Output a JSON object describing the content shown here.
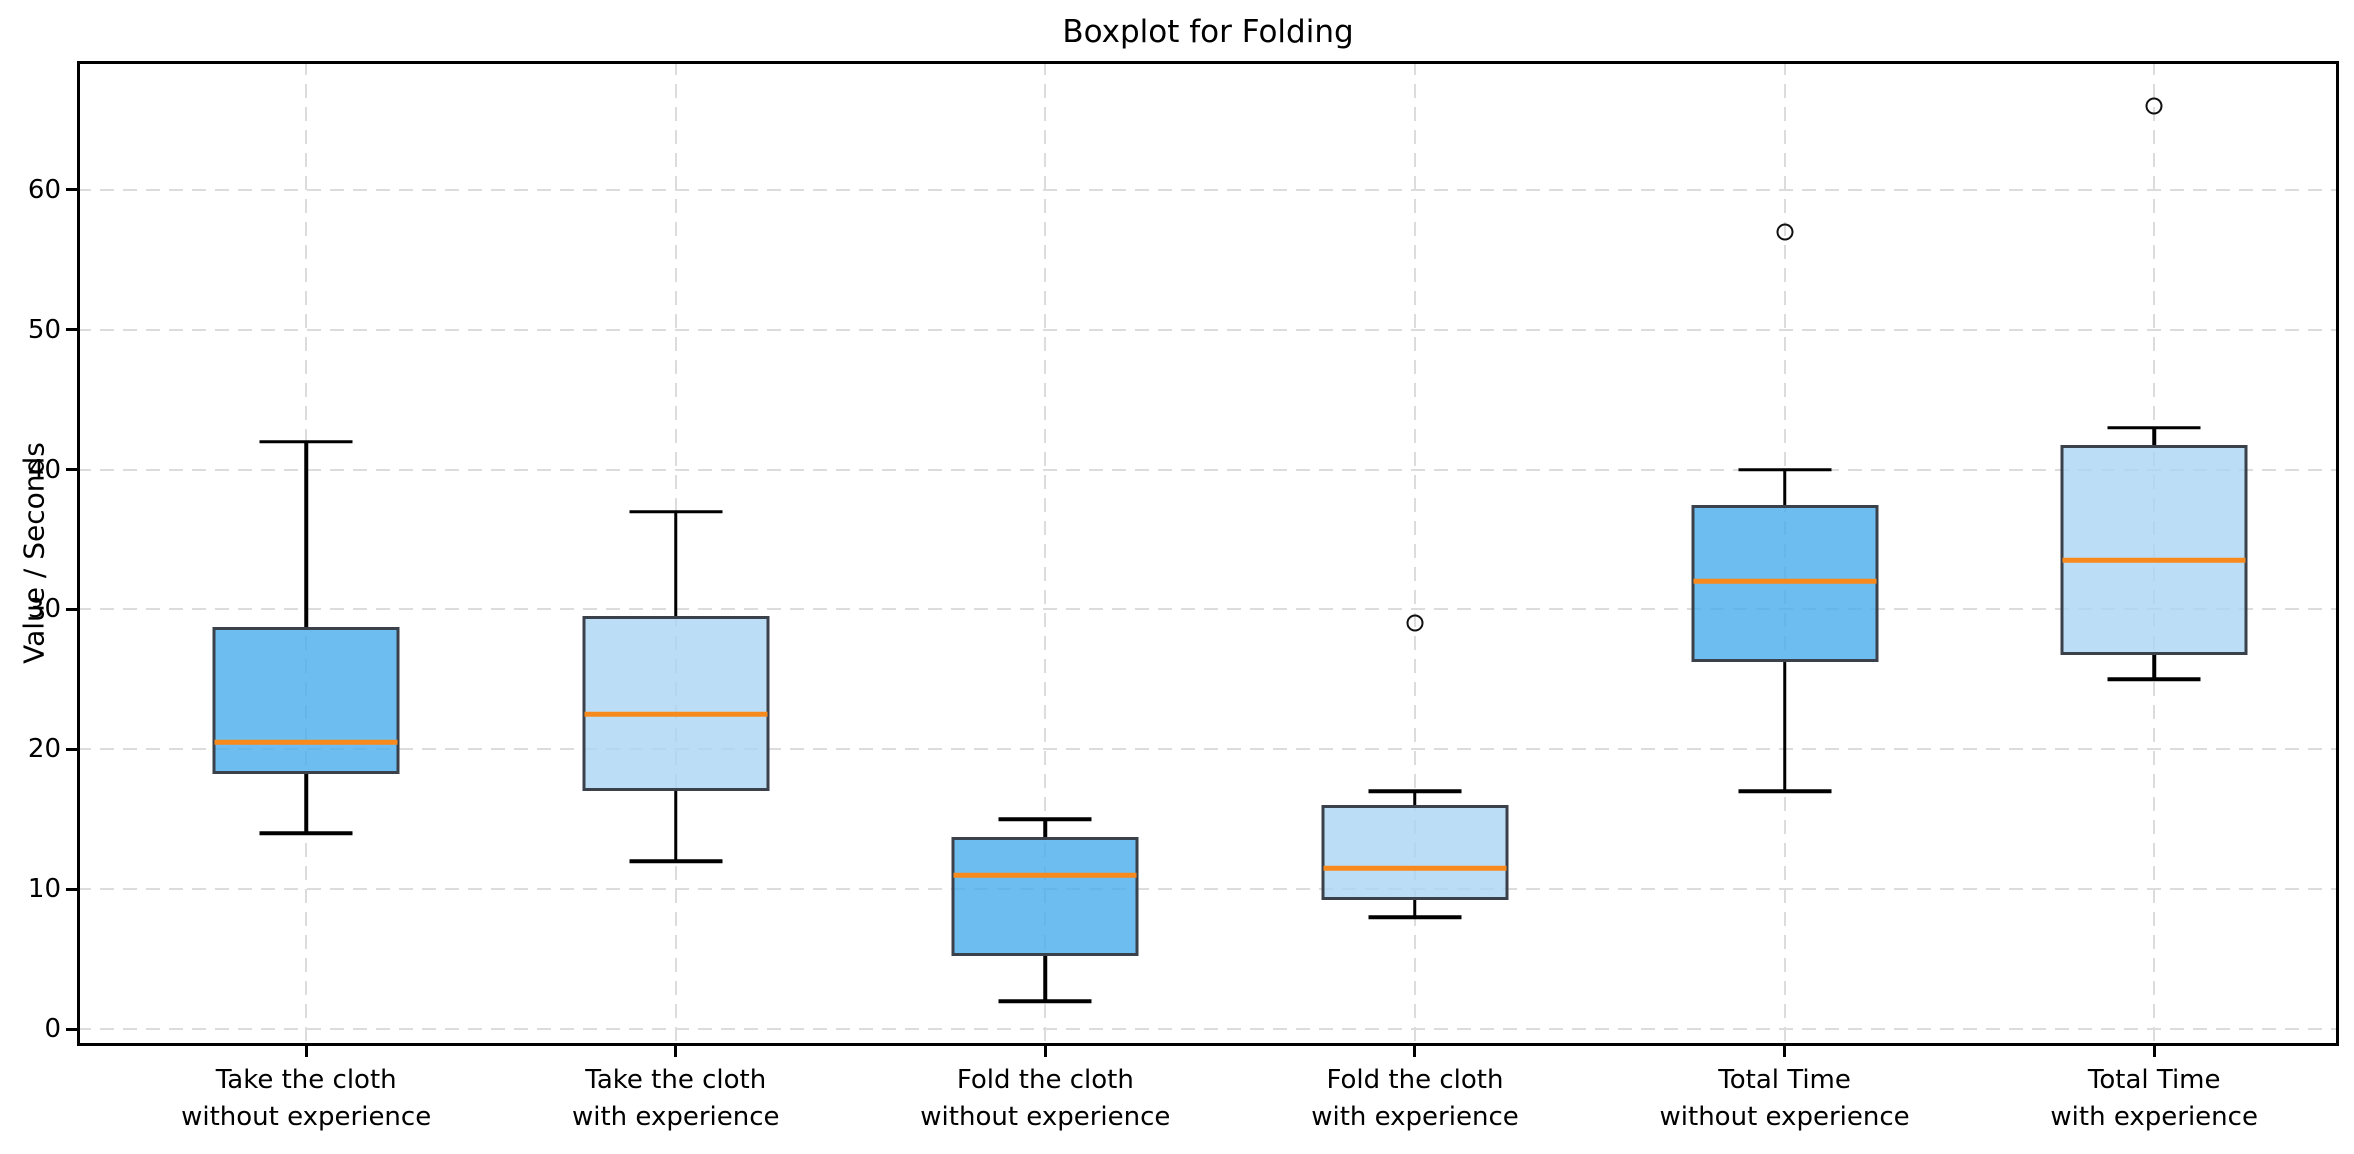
{
  "title": "Boxplot for Folding",
  "ylabel": "Value / Seconds",
  "chart_data": {
    "type": "boxplot",
    "title": "Boxplot for Folding",
    "xlabel": "",
    "ylabel": "Value / Seconds",
    "grid": "dashed, light gray, horizontal and vertical",
    "legend": "none",
    "yticks": [
      0,
      10,
      20,
      30,
      40,
      50,
      60
    ],
    "ylim": [
      -1.2,
      69.2
    ],
    "xlim": [
      0.38,
      6.5
    ],
    "categories": [
      "Take the cloth\nwithout experience",
      "Take the cloth\nwith experience",
      "Fold the cloth\nwithout experience",
      "Fold the cloth\nwith experience",
      "Total Time\nwithout experience",
      "Total Time\nwith experience"
    ],
    "series": [
      {
        "label": "Take the cloth without experience",
        "whislo": 14,
        "q1": 18.25,
        "med": 20.5,
        "q3": 28.75,
        "whishi": 42,
        "fliers": [],
        "variant": "dark"
      },
      {
        "label": "Take the cloth with experience",
        "whislo": 12,
        "q1": 17,
        "med": 22.5,
        "q3": 29.5,
        "whishi": 37,
        "fliers": [],
        "variant": "light"
      },
      {
        "label": "Fold the cloth without experience",
        "whislo": 2,
        "q1": 5.25,
        "med": 11,
        "q3": 13.75,
        "whishi": 15,
        "fliers": [],
        "variant": "dark"
      },
      {
        "label": "Fold the cloth with experience",
        "whislo": 8,
        "q1": 9.25,
        "med": 11.5,
        "q3": 16,
        "whishi": 17,
        "fliers": [
          29
        ],
        "variant": "light"
      },
      {
        "label": "Total Time without experience",
        "whislo": 17,
        "q1": 26.25,
        "med": 32,
        "q3": 37.5,
        "whishi": 40,
        "fliers": [
          57
        ],
        "variant": "dark"
      },
      {
        "label": "Total Time with experience",
        "whislo": 25,
        "q1": 26.75,
        "med": 33.5,
        "q3": 41.75,
        "whishi": 43,
        "fliers": [
          66
        ],
        "variant": "light"
      }
    ],
    "colors": {
      "box_fill_dark": "rgba(74,172,236,0.8)",
      "box_fill_light": "rgba(170,212,244,0.8)",
      "box_edge": "#3a414b",
      "median": "#f7891d",
      "whisker": "#000000",
      "outlier_edge": "#111111",
      "grid": "#dcdcdc",
      "background": "#ffffff"
    }
  }
}
